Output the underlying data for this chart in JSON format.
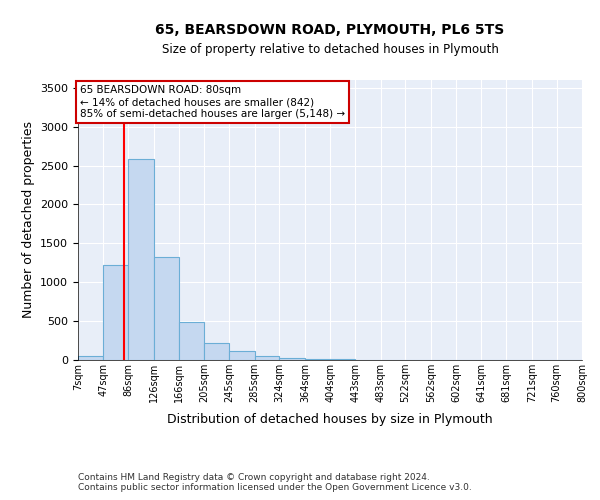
{
  "title1": "65, BEARSDOWN ROAD, PLYMOUTH, PL6 5TS",
  "title2": "Size of property relative to detached houses in Plymouth",
  "xlabel": "Distribution of detached houses by size in Plymouth",
  "ylabel": "Number of detached properties",
  "bin_labels": [
    "7sqm",
    "47sqm",
    "86sqm",
    "126sqm",
    "166sqm",
    "205sqm",
    "245sqm",
    "285sqm",
    "324sqm",
    "364sqm",
    "404sqm",
    "443sqm",
    "483sqm",
    "522sqm",
    "562sqm",
    "602sqm",
    "641sqm",
    "681sqm",
    "721sqm",
    "760sqm",
    "800sqm"
  ],
  "bin_left_edges": [
    7,
    47,
    86,
    126,
    166,
    205,
    245,
    285,
    324,
    364,
    404,
    443,
    483,
    522,
    562,
    602,
    641,
    681,
    721,
    760
  ],
  "bar_heights": [
    50,
    1220,
    2580,
    1330,
    490,
    215,
    110,
    50,
    25,
    10,
    8,
    5,
    3,
    2,
    2,
    1,
    1,
    1,
    0,
    0
  ],
  "bar_color": "#c5d8f0",
  "bar_edgecolor": "#6baed6",
  "red_line_x": 80,
  "xlim_left": 7,
  "xlim_right": 800,
  "ylim": [
    0,
    3600
  ],
  "yticks": [
    0,
    500,
    1000,
    1500,
    2000,
    2500,
    3000,
    3500
  ],
  "xtick_positions": [
    7,
    47,
    86,
    126,
    166,
    205,
    245,
    285,
    324,
    364,
    404,
    443,
    483,
    522,
    562,
    602,
    641,
    681,
    721,
    760,
    800
  ],
  "annotation_title": "65 BEARSDOWN ROAD: 80sqm",
  "annotation_line1": "← 14% of detached houses are smaller (842)",
  "annotation_line2": "85% of semi-detached houses are larger (5,148) →",
  "annotation_box_facecolor": "#ffffff",
  "annotation_box_edgecolor": "#cc0000",
  "footer1": "Contains HM Land Registry data © Crown copyright and database right 2024.",
  "footer2": "Contains public sector information licensed under the Open Government Licence v3.0.",
  "plot_bg_color": "#e8eef8",
  "fig_bg_color": "#ffffff"
}
